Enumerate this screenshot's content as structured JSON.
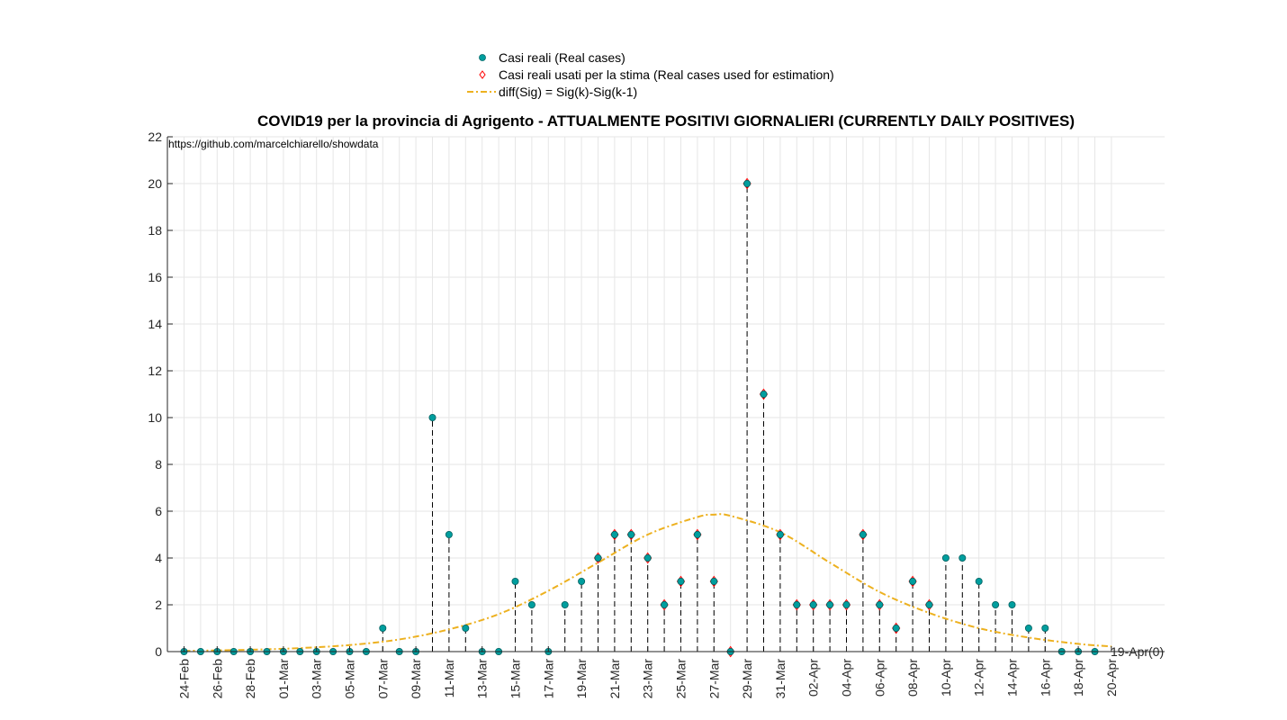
{
  "chart_data": {
    "type": "scatter",
    "title": "COVID19 per la provincia di Agrigento - ATTUALMENTE POSITIVI GIORNALIERI (CURRENTLY DAILY POSITIVES)",
    "annotation": "https://github.com/marcelchiarello/showdata",
    "end_label": "19-Apr(0)",
    "xlabel": "",
    "ylabel": "",
    "ylim": [
      0,
      22
    ],
    "yticks": [
      0,
      2,
      4,
      6,
      8,
      10,
      12,
      14,
      16,
      18,
      20,
      22
    ],
    "grid": true,
    "legend_position": "top-center",
    "x_tick_labels": [
      "24-Feb",
      "26-Feb",
      "28-Feb",
      "01-Mar",
      "03-Mar",
      "05-Mar",
      "07-Mar",
      "09-Mar",
      "11-Mar",
      "13-Mar",
      "15-Mar",
      "17-Mar",
      "19-Mar",
      "21-Mar",
      "23-Mar",
      "25-Mar",
      "27-Mar",
      "29-Mar",
      "31-Mar",
      "02-Apr",
      "04-Apr",
      "06-Apr",
      "08-Apr",
      "10-Apr",
      "12-Apr",
      "14-Apr",
      "16-Apr",
      "18-Apr",
      "20-Apr"
    ],
    "x": [
      "24-Feb",
      "25-Feb",
      "26-Feb",
      "27-Feb",
      "28-Feb",
      "29-Feb",
      "01-Mar",
      "02-Mar",
      "03-Mar",
      "04-Mar",
      "05-Mar",
      "06-Mar",
      "07-Mar",
      "08-Mar",
      "09-Mar",
      "10-Mar",
      "11-Mar",
      "12-Mar",
      "13-Mar",
      "14-Mar",
      "15-Mar",
      "16-Mar",
      "17-Mar",
      "18-Mar",
      "19-Mar",
      "20-Mar",
      "21-Mar",
      "22-Mar",
      "23-Mar",
      "24-Mar",
      "25-Mar",
      "26-Mar",
      "27-Mar",
      "28-Mar",
      "29-Mar",
      "30-Mar",
      "31-Mar",
      "01-Apr",
      "02-Apr",
      "03-Apr",
      "04-Apr",
      "05-Apr",
      "06-Apr",
      "07-Apr",
      "08-Apr",
      "09-Apr",
      "10-Apr",
      "11-Apr",
      "12-Apr",
      "13-Apr",
      "14-Apr",
      "15-Apr",
      "16-Apr",
      "17-Apr",
      "18-Apr",
      "19-Apr"
    ],
    "series": [
      {
        "name": "Casi reali (Real cases)",
        "kind": "stem-markers",
        "color": "#009e9e",
        "values": [
          0,
          0,
          0,
          0,
          0,
          0,
          0,
          0,
          0,
          0,
          0,
          0,
          1,
          0,
          0,
          10,
          5,
          1,
          0,
          0,
          3,
          2,
          0,
          2,
          3,
          4,
          5,
          5,
          4,
          2,
          3,
          5,
          3,
          0,
          20,
          11,
          5,
          2,
          2,
          2,
          2,
          5,
          2,
          1,
          3,
          2,
          4,
          4,
          3,
          2,
          2,
          1,
          1,
          0,
          0,
          0
        ]
      },
      {
        "name": "Casi reali usati per la stima (Real cases used for estimation)",
        "kind": "diamond-markers",
        "color": "#ff0000",
        "x": [
          "20-Mar",
          "21-Mar",
          "22-Mar",
          "23-Mar",
          "24-Mar",
          "25-Mar",
          "26-Mar",
          "27-Mar",
          "28-Mar",
          "29-Mar",
          "30-Mar",
          "31-Mar",
          "01-Apr",
          "02-Apr",
          "03-Apr",
          "04-Apr",
          "05-Apr",
          "06-Apr",
          "07-Apr",
          "08-Apr",
          "09-Apr"
        ],
        "values": [
          4,
          5,
          5,
          4,
          2,
          3,
          5,
          3,
          0,
          20,
          11,
          5,
          2,
          2,
          2,
          2,
          5,
          2,
          1,
          3,
          2
        ]
      },
      {
        "name": "diff(Sig) = Sig(k)-Sig(k-1)",
        "kind": "dash-dot-line",
        "color": "#edb120",
        "x": [
          "24-Feb",
          "28-Feb",
          "02-Mar",
          "05-Mar",
          "08-Mar",
          "11-Mar",
          "14-Mar",
          "17-Mar",
          "20-Mar",
          "23-Mar",
          "26-Mar",
          "27-Mar",
          "28-Mar",
          "31-Mar",
          "03-Apr",
          "06-Apr",
          "09-Apr",
          "12-Apr",
          "15-Apr",
          "18-Apr",
          "20-Apr"
        ],
        "values": [
          0.03,
          0.08,
          0.15,
          0.28,
          0.52,
          0.95,
          1.6,
          2.6,
          3.8,
          5.0,
          5.75,
          5.85,
          5.8,
          5.1,
          3.8,
          2.55,
          1.65,
          1.0,
          0.6,
          0.33,
          0.22
        ]
      }
    ]
  }
}
